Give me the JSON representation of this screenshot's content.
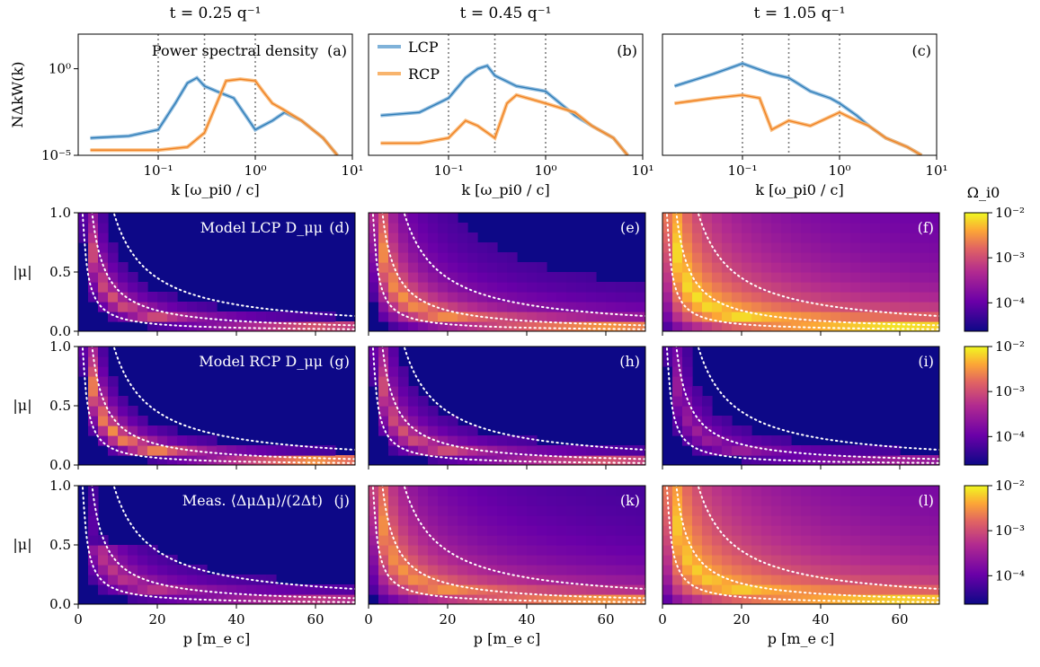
{
  "columns": [
    {
      "title": "t = 0.25 q⁻¹"
    },
    {
      "title": "t = 0.45 q⁻¹"
    },
    {
      "title": "t = 1.05 q⁻¹"
    }
  ],
  "colors": {
    "lcp": "#2c7bb6",
    "lcp_fit": "#7fb2d9",
    "rcp": "#f07f1f",
    "rcp_fit": "#f8b46d",
    "guide": "#7f7f7f",
    "heat_low": "#0d0887",
    "heat_high": "#f0f921"
  },
  "spectra": {
    "ylabel": "NΔkW(k)",
    "xlabel": "k [ω_pi0 / c]",
    "title_in_a": "Power spectral density",
    "legend": [
      "LCP",
      "RCP"
    ],
    "panel_tags": [
      "(a)",
      "(b)",
      "(c)"
    ],
    "guide_lines_x": [
      0.1,
      0.3,
      1.0
    ],
    "x_ticks": [
      "10⁻¹",
      "10⁰",
      "10¹"
    ],
    "y_ticks": [
      "10⁻⁵",
      "10⁰"
    ]
  },
  "maps": {
    "ylabel": "|μ|",
    "xlabel": "p [m_e c]",
    "row_titles": [
      "Model LCP D_μμ",
      "Model RCP D_μμ",
      "Meas. ⟨ΔμΔμ⟩/(2Δt)"
    ],
    "panel_tags": [
      "(d)",
      "(e)",
      "(f)",
      "(g)",
      "(h)",
      "(i)",
      "(j)",
      "(k)",
      "(l)"
    ],
    "x_ticks": [
      "0",
      "20",
      "40",
      "60"
    ],
    "y_ticks": [
      "0.0",
      "0.5",
      "1.0"
    ],
    "colorbar_label": "Ω_i0",
    "colorbar_ticks": [
      "10⁻²",
      "10⁻³",
      "10⁻⁴"
    ]
  },
  "chart_data": [
    {
      "type": "line",
      "panel": "(a)",
      "xscale": "log",
      "yscale": "log",
      "xlim": [
        0.015,
        10
      ],
      "ylim": [
        1e-05,
        100
      ],
      "series": [
        {
          "name": "LCP",
          "x": [
            0.02,
            0.05,
            0.1,
            0.15,
            0.2,
            0.25,
            0.3,
            0.4,
            0.6,
            1,
            1.5,
            2,
            3,
            5,
            7
          ],
          "y": [
            0.0001,
            0.00013,
            0.0003,
            0.01,
            0.15,
            0.3,
            0.1,
            0.05,
            0.02,
            0.0003,
            0.001,
            0.003,
            0.001,
            0.0001,
            1e-05
          ]
        },
        {
          "name": "RCP",
          "x": [
            0.02,
            0.05,
            0.1,
            0.2,
            0.3,
            0.5,
            0.7,
            1,
            1.2,
            1.5,
            2,
            3,
            5,
            7
          ],
          "y": [
            2e-05,
            2e-05,
            2e-05,
            3e-05,
            0.0002,
            0.2,
            0.25,
            0.2,
            0.05,
            0.01,
            0.004,
            0.001,
            0.0001,
            1e-05
          ]
        }
      ]
    },
    {
      "type": "line",
      "panel": "(b)",
      "xscale": "log",
      "yscale": "log",
      "xlim": [
        0.015,
        10
      ],
      "ylim": [
        1e-05,
        100
      ],
      "series": [
        {
          "name": "LCP",
          "x": [
            0.02,
            0.05,
            0.1,
            0.15,
            0.2,
            0.25,
            0.3,
            0.5,
            1,
            2,
            3,
            5,
            7
          ],
          "y": [
            0.002,
            0.003,
            0.02,
            0.3,
            1,
            1.5,
            0.4,
            0.1,
            0.05,
            0.002,
            0.0005,
            0.0001,
            1e-05
          ]
        },
        {
          "name": "RCP",
          "x": [
            0.02,
            0.05,
            0.1,
            0.15,
            0.2,
            0.3,
            0.4,
            0.5,
            1,
            2,
            3,
            5,
            7
          ],
          "y": [
            5e-05,
            5e-05,
            0.0001,
            0.001,
            0.0005,
            0.0001,
            0.01,
            0.03,
            0.01,
            0.003,
            0.0005,
            0.0001,
            1e-05
          ]
        }
      ]
    },
    {
      "type": "line",
      "panel": "(c)",
      "xscale": "log",
      "yscale": "log",
      "xlim": [
        0.015,
        10
      ],
      "ylim": [
        1e-05,
        100
      ],
      "series": [
        {
          "name": "LCP",
          "x": [
            0.02,
            0.05,
            0.1,
            0.2,
            0.3,
            0.5,
            0.8,
            1,
            1.5,
            2,
            3,
            5,
            7
          ],
          "y": [
            0.1,
            0.5,
            2,
            0.5,
            0.3,
            0.05,
            0.02,
            0.01,
            0.002,
            0.0005,
            0.0001,
            3e-05,
            1e-05
          ]
        },
        {
          "name": "RCP",
          "x": [
            0.02,
            0.05,
            0.1,
            0.15,
            0.2,
            0.3,
            0.5,
            1,
            1.5,
            2,
            3,
            5,
            7
          ],
          "y": [
            0.01,
            0.02,
            0.03,
            0.02,
            0.0003,
            0.001,
            0.0005,
            0.003,
            0.001,
            0.0005,
            0.0001,
            3e-05,
            1e-05
          ]
        }
      ]
    },
    {
      "type": "heatmap",
      "panels": [
        "(d)",
        "(e)",
        "(f)",
        "(g)",
        "(h)",
        "(i)",
        "(j)",
        "(k)",
        "(l)"
      ],
      "xlim": [
        0,
        70
      ],
      "ylim": [
        0,
        1
      ],
      "color_scale": "log",
      "color_range": [
        3e-05,
        0.01
      ],
      "guide_curves": "three resonance curves |μ| = C / p per panel (dotted white)"
    }
  ]
}
